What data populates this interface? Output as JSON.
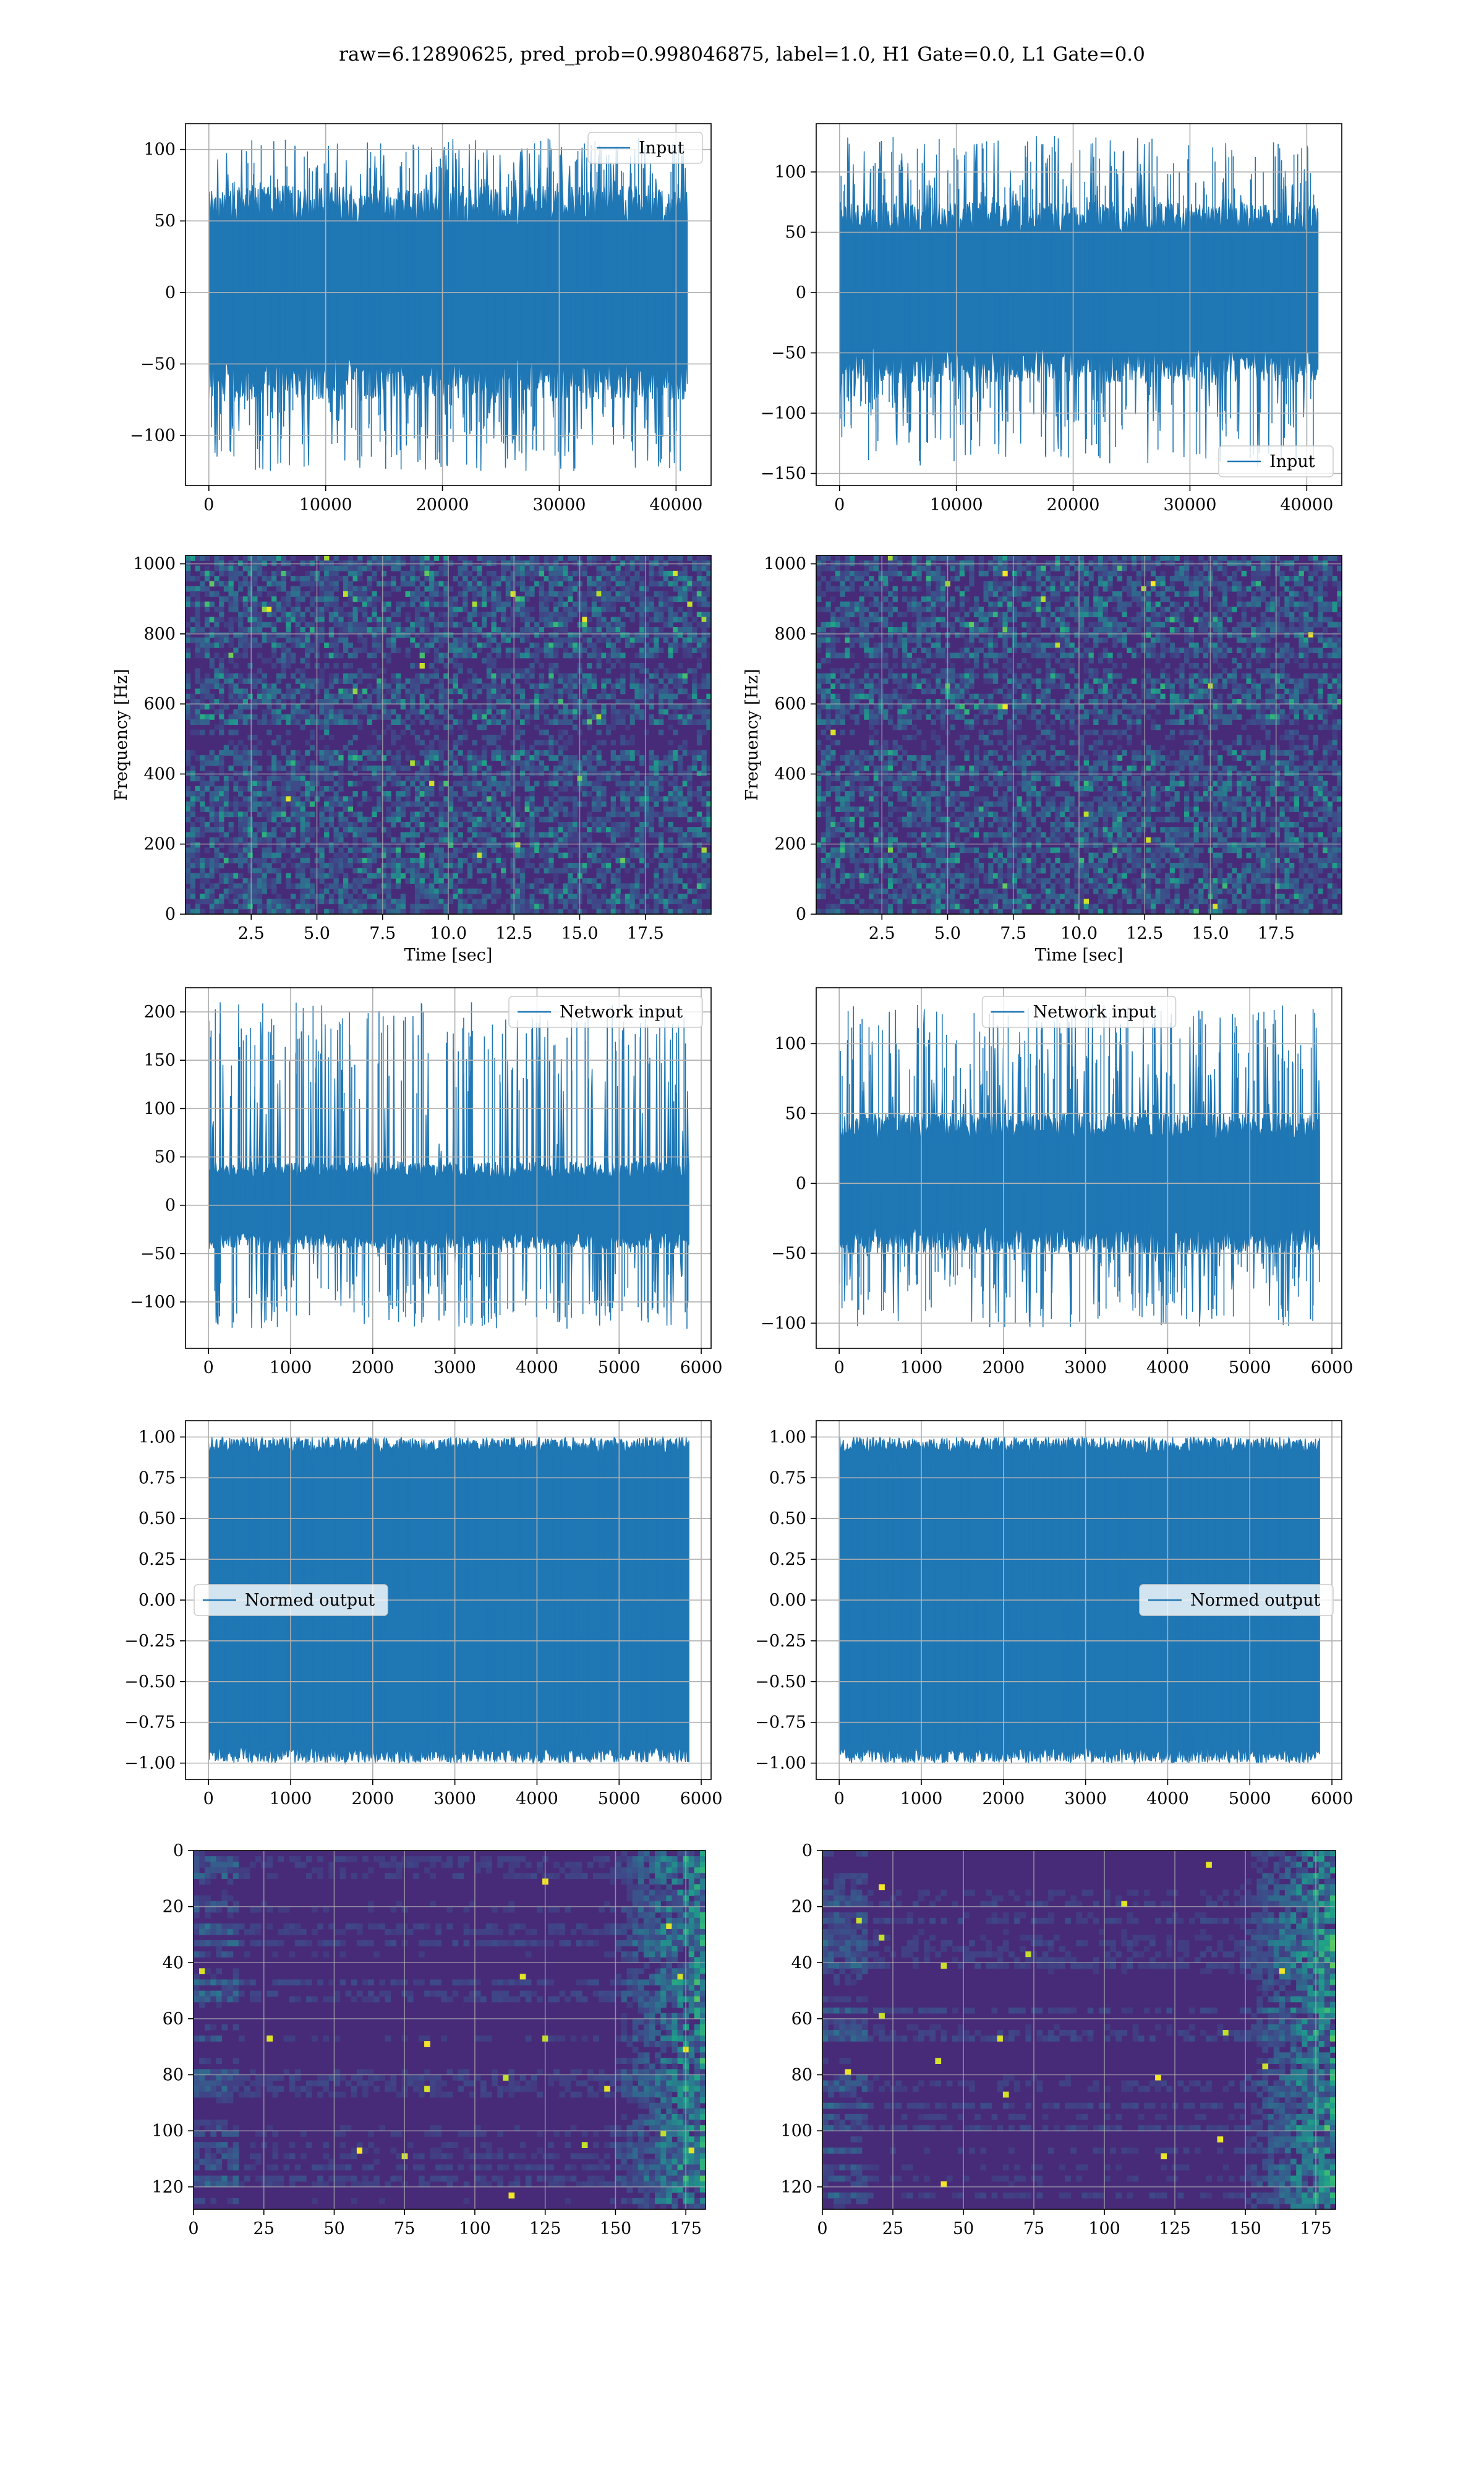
{
  "figure": {
    "suptitle": "raw=6.12890625, pred_prob=0.998046875, label=1.0, H1 Gate=0.0, L1 Gate=0.0"
  },
  "colors": {
    "line": "#1f77b4",
    "grid": "#b0b0b0",
    "spine": "#000000",
    "viridis_low": "#440154",
    "viridis_mid": "#31688e",
    "viridis_teal": "#21918c",
    "viridis_green": "#5ec962",
    "viridis_high": "#fde725"
  },
  "chart_data": [
    {
      "id": "h1-input",
      "type": "line",
      "series": [
        {
          "name": "Input",
          "envelope_max": 108,
          "envelope_min": -126,
          "typical_amplitude": 75
        }
      ],
      "x_range": [
        0,
        40960
      ],
      "xlim": [
        -2000,
        43000
      ],
      "ylim": [
        -135,
        118
      ],
      "xticks": [
        0,
        10000,
        20000,
        30000,
        40000
      ],
      "yticks": [
        -100,
        -50,
        0,
        50,
        100
      ],
      "xlabel": "",
      "ylabel": "",
      "legend": "upper right",
      "grid": true
    },
    {
      "id": "l1-input",
      "type": "line",
      "series": [
        {
          "name": "Input",
          "envelope_max": 130,
          "envelope_min": -145,
          "typical_amplitude": 75
        }
      ],
      "x_range": [
        0,
        40960
      ],
      "xlim": [
        -2000,
        43000
      ],
      "ylim": [
        -160,
        140
      ],
      "xticks": [
        0,
        10000,
        20000,
        30000,
        40000
      ],
      "yticks": [
        -150,
        -100,
        -50,
        0,
        50,
        100
      ],
      "xlabel": "",
      "ylabel": "",
      "legend": "lower right",
      "grid": true
    },
    {
      "id": "h1-spectrogram",
      "type": "heatmap",
      "xlim": [
        0,
        20
      ],
      "ylim": [
        0,
        1024
      ],
      "xticks": [
        2.5,
        5.0,
        7.5,
        10.0,
        12.5,
        15.0,
        17.5
      ],
      "yticks": [
        0,
        200,
        400,
        600,
        800,
        1000
      ],
      "xlabel": "Time [sec]",
      "ylabel": "Frequency [Hz]",
      "grid": true
    },
    {
      "id": "l1-spectrogram",
      "type": "heatmap",
      "xlim": [
        0,
        20
      ],
      "ylim": [
        0,
        1024
      ],
      "xticks": [
        2.5,
        5.0,
        7.5,
        10.0,
        12.5,
        15.0,
        17.5
      ],
      "yticks": [
        0,
        200,
        400,
        600,
        800,
        1000
      ],
      "xlabel": "Time [sec]",
      "ylabel": "Frequency [Hz]",
      "grid": true
    },
    {
      "id": "h1-network-input",
      "type": "line",
      "series": [
        {
          "name": "Network input",
          "envelope_max": 210,
          "envelope_min": -128,
          "typical_amplitude": 45,
          "spike_at": 0,
          "spike_value": 210
        }
      ],
      "x_range": [
        0,
        5850
      ],
      "xlim": [
        -280,
        6120
      ],
      "ylim": [
        -148,
        225
      ],
      "xticks": [
        0,
        1000,
        2000,
        3000,
        4000,
        5000,
        6000
      ],
      "yticks": [
        -100,
        -50,
        0,
        50,
        100,
        150,
        200
      ],
      "xlabel": "",
      "ylabel": "",
      "legend": "upper right",
      "grid": true
    },
    {
      "id": "l1-network-input",
      "type": "line",
      "series": [
        {
          "name": "Network input",
          "envelope_max": 128,
          "envelope_min": -103,
          "typical_amplitude": 50
        }
      ],
      "x_range": [
        0,
        5850
      ],
      "xlim": [
        -280,
        6120
      ],
      "ylim": [
        -118,
        140
      ],
      "xticks": [
        0,
        1000,
        2000,
        3000,
        4000,
        5000,
        6000
      ],
      "yticks": [
        -100,
        -50,
        0,
        50,
        100
      ],
      "xlabel": "",
      "ylabel": "",
      "legend": "upper center",
      "grid": true
    },
    {
      "id": "h1-normed-output",
      "type": "line",
      "series": [
        {
          "name": "Normed output",
          "envelope_max": 1.0,
          "envelope_min": -1.0,
          "typical_amplitude": 0.9
        }
      ],
      "x_range": [
        0,
        5850
      ],
      "xlim": [
        -280,
        6120
      ],
      "ylim": [
        -1.1,
        1.1
      ],
      "xticks": [
        0,
        1000,
        2000,
        3000,
        4000,
        5000,
        6000
      ],
      "yticks": [
        -1.0,
        -0.75,
        -0.5,
        -0.25,
        0.0,
        0.25,
        0.5,
        0.75,
        1.0
      ],
      "ytick_labels": [
        "−1.00",
        "−0.75",
        "−0.50",
        "−0.25",
        "0.00",
        "0.25",
        "0.50",
        "0.75",
        "1.00"
      ],
      "xlabel": "",
      "ylabel": "",
      "legend": "center left",
      "grid": true
    },
    {
      "id": "l1-normed-output",
      "type": "line",
      "series": [
        {
          "name": "Normed output",
          "envelope_max": 1.0,
          "envelope_min": -1.0,
          "typical_amplitude": 0.9
        }
      ],
      "x_range": [
        0,
        5850
      ],
      "xlim": [
        -280,
        6120
      ],
      "ylim": [
        -1.1,
        1.1
      ],
      "xticks": [
        0,
        1000,
        2000,
        3000,
        4000,
        5000,
        6000
      ],
      "yticks": [
        -1.0,
        -0.75,
        -0.5,
        -0.25,
        0.0,
        0.25,
        0.5,
        0.75,
        1.0
      ],
      "ytick_labels": [
        "−1.00",
        "−0.75",
        "−0.50",
        "−0.25",
        "0.00",
        "0.25",
        "0.50",
        "0.75",
        "1.00"
      ],
      "xlabel": "",
      "ylabel": "",
      "legend": "center right",
      "grid": true
    },
    {
      "id": "h1-feature-map",
      "type": "heatmap",
      "rows": 128,
      "cols": 182,
      "xlim": [
        0,
        182
      ],
      "ylim": [
        128,
        0
      ],
      "xticks": [
        0,
        25,
        50,
        75,
        100,
        125,
        150,
        175
      ],
      "yticks": [
        0,
        20,
        40,
        60,
        80,
        100,
        120
      ],
      "xlabel": "",
      "ylabel": "",
      "grid": true
    },
    {
      "id": "l1-feature-map",
      "type": "heatmap",
      "rows": 128,
      "cols": 182,
      "xlim": [
        0,
        182
      ],
      "ylim": [
        128,
        0
      ],
      "xticks": [
        0,
        25,
        50,
        75,
        100,
        125,
        150,
        175
      ],
      "yticks": [
        0,
        20,
        40,
        60,
        80,
        100,
        120
      ],
      "xlabel": "",
      "ylabel": "",
      "grid": true
    }
  ]
}
